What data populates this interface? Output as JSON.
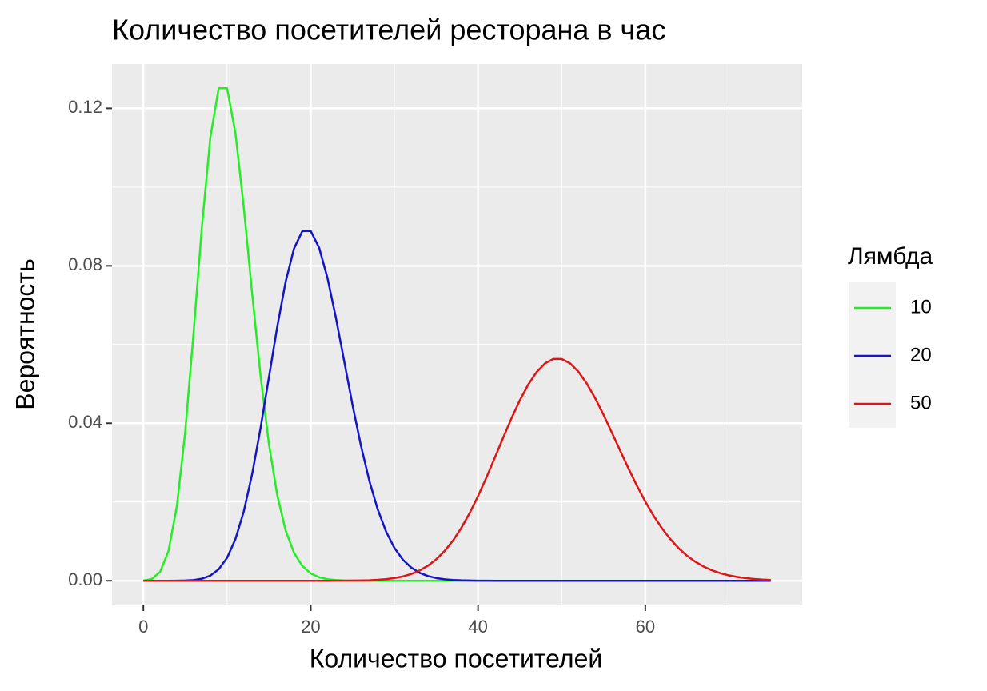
{
  "chart_data": {
    "type": "line",
    "title": "Количество посетителей ресторана в час",
    "x_label": "Количество посетителей",
    "y_label": "Вероятность",
    "legend_title": "Лямбда",
    "x": [
      0,
      1,
      2,
      3,
      4,
      5,
      6,
      7,
      8,
      9,
      10,
      11,
      12,
      13,
      14,
      15,
      16,
      17,
      18,
      19,
      20,
      21,
      22,
      23,
      24,
      25,
      26,
      27,
      28,
      29,
      30,
      31,
      32,
      33,
      34,
      35,
      36,
      37,
      38,
      39,
      40,
      41,
      42,
      43,
      44,
      45,
      46,
      47,
      48,
      49,
      50,
      51,
      52,
      53,
      54,
      55,
      56,
      57,
      58,
      59,
      60,
      61,
      62,
      63,
      64,
      65,
      66,
      67,
      68,
      69,
      70,
      71,
      72,
      73,
      74,
      75
    ],
    "series": [
      {
        "name": "10",
        "color": "#22ee22",
        "values": [
          5e-05,
          0.00045,
          0.00227,
          0.00757,
          0.01892,
          0.03783,
          0.06306,
          0.09008,
          0.1126,
          0.12511,
          0.12511,
          0.11374,
          0.09478,
          0.07291,
          0.05208,
          0.03472,
          0.0217,
          0.01276,
          0.00709,
          0.00373,
          0.00187,
          0.00089,
          0.0004,
          0.00018,
          7e-05,
          3e-05,
          1e-05,
          0,
          0,
          0,
          0,
          0,
          0,
          0,
          0,
          0,
          0,
          0,
          0,
          0,
          0,
          0,
          0,
          0,
          0,
          0,
          0,
          0,
          0,
          0,
          0,
          0,
          0,
          0,
          0,
          0,
          0,
          0,
          0,
          0,
          0,
          0,
          0,
          0,
          0,
          0,
          0,
          0,
          0,
          0,
          0,
          0,
          0,
          0,
          0,
          0
        ]
      },
      {
        "name": "20",
        "color": "#1414c8",
        "values": [
          0,
          0,
          0,
          0,
          1e-05,
          6e-05,
          0.00018,
          0.00052,
          0.00131,
          0.00291,
          0.00582,
          0.01058,
          0.01763,
          0.02712,
          0.03874,
          0.05165,
          0.06457,
          0.07596,
          0.0844,
          0.08884,
          0.08884,
          0.08461,
          0.07692,
          0.06689,
          0.05574,
          0.04459,
          0.0343,
          0.02541,
          0.01815,
          0.01252,
          0.00834,
          0.00538,
          0.00336,
          0.00204,
          0.0012,
          0.00069,
          0.00038,
          0.00021,
          0.00011,
          6e-05,
          3e-05,
          1e-05,
          0,
          0,
          0,
          0,
          0,
          0,
          0,
          0,
          0,
          0,
          0,
          0,
          0,
          0,
          0,
          0,
          0,
          0,
          0,
          0,
          0,
          0,
          0,
          0,
          0,
          0,
          0,
          0,
          0,
          0,
          0,
          0,
          0,
          0
        ]
      },
      {
        "name": "50",
        "color": "#e01414",
        "values": [
          0,
          0,
          0,
          0,
          0,
          0,
          0,
          0,
          0,
          0,
          0,
          0,
          0,
          0,
          0,
          0,
          0,
          0,
          0,
          0,
          0,
          0,
          0,
          1e-05,
          2e-05,
          4e-05,
          7e-05,
          0.00013,
          0.00024,
          0.00041,
          0.00068,
          0.00109,
          0.00171,
          0.00259,
          0.00381,
          0.00544,
          0.00755,
          0.0102,
          0.01342,
          0.0172,
          0.0215,
          0.02622,
          0.03122,
          0.0363,
          0.04125,
          0.04583,
          0.04981,
          0.05299,
          0.0552,
          0.05633,
          0.05633,
          0.05523,
          0.05311,
          0.0501,
          0.04639,
          0.04217,
          0.03765,
          0.03303,
          0.02847,
          0.02413,
          0.02011,
          0.01648,
          0.01329,
          0.01055,
          0.00824,
          0.00634,
          0.0048,
          0.00358,
          0.00263,
          0.00191,
          0.00136,
          0.00096,
          0.00067,
          0.00046,
          0.00031,
          0.00021
        ]
      }
    ],
    "xlim": [
      -3.75,
      78.75
    ],
    "ylim": [
      -0.00625,
      0.13125
    ],
    "xticks": [
      0,
      20,
      40,
      60
    ],
    "yticks": [
      {
        "value": 0,
        "label": "0.00"
      },
      {
        "value": 0.04,
        "label": "0.04"
      },
      {
        "value": 0.08,
        "label": "0.08"
      },
      {
        "value": 0.12,
        "label": "0.12"
      }
    ],
    "xminor": [
      10,
      30,
      50,
      70
    ],
    "yminor": [
      0.02,
      0.06,
      0.1
    ],
    "grid": true,
    "legend": "right"
  }
}
